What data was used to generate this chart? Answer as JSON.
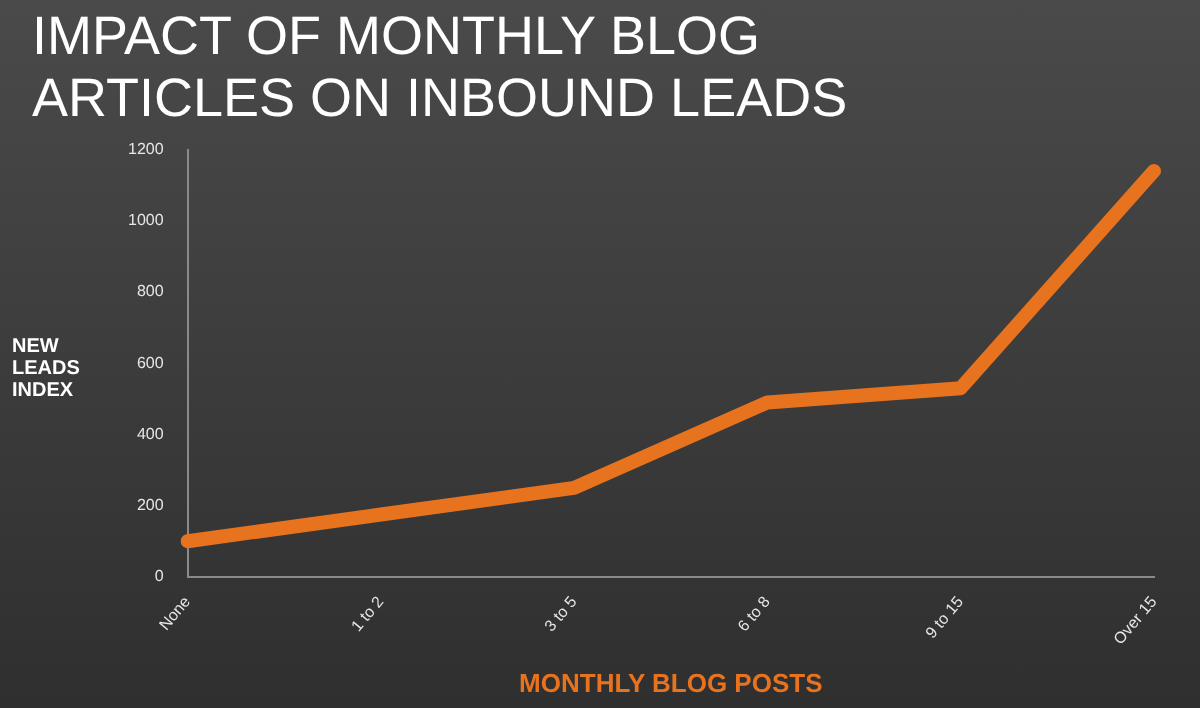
{
  "chart_data": {
    "type": "line",
    "title": "IMPACT OF MONTHLY BLOG ARTICLES ON INBOUND LEADS",
    "xlabel": "MONTHLY BLOG POSTS",
    "ylabel": "NEW LEADS INDEX",
    "categories": [
      "None",
      "1 to 2",
      "3 to 5",
      "6 to 8",
      "9 to 15",
      "Over 15"
    ],
    "series": [
      {
        "color": "#e8731f",
        "values": [
          100,
          175,
          250,
          490,
          530,
          1140
        ]
      }
    ],
    "ylim": [
      0,
      1200
    ],
    "yticks": [
      0,
      200,
      400,
      600,
      800,
      1000,
      1200
    ],
    "grid": false,
    "legend": false,
    "marker": "none",
    "line_style": "solid"
  }
}
